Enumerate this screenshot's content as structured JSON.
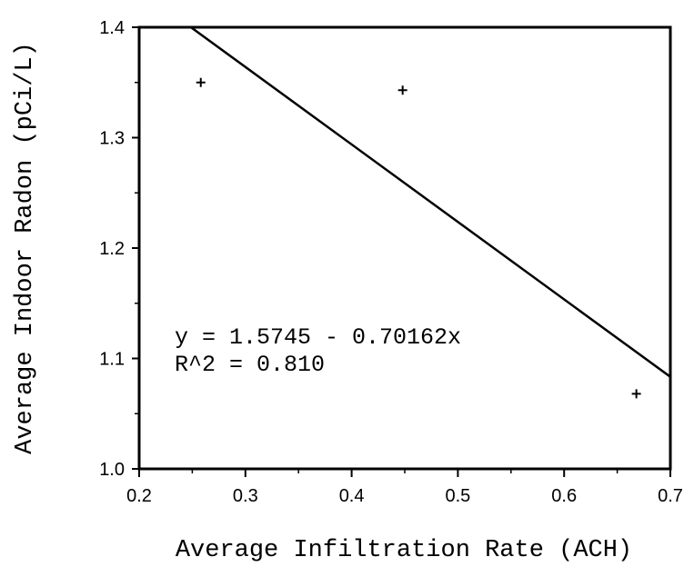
{
  "chart_data": {
    "type": "scatter",
    "xlabel": "Average Infiltration Rate (ACH)",
    "ylabel": "Average Indoor Radon (pCi/L)",
    "xlim": [
      0.2,
      0.7
    ],
    "ylim": [
      1.0,
      1.4
    ],
    "xticks": [
      "0.2",
      "0.3",
      "0.4",
      "0.5",
      "0.6",
      "0.7"
    ],
    "yticks": [
      "1.0",
      "1.1",
      "1.2",
      "1.3",
      "1.4"
    ],
    "x_minor_step": 0.05,
    "y_minor_step": 0.05,
    "grid": false,
    "series": [
      {
        "marker": "+",
        "points": [
          {
            "x": 0.258,
            "y": 1.35
          },
          {
            "x": 0.448,
            "y": 1.343
          },
          {
            "x": 0.668,
            "y": 1.068
          }
        ]
      }
    ],
    "fit_line": {
      "intercept": 1.5745,
      "slope": -0.70162
    },
    "annotations": [
      "y = 1.5745 - 0.70162x",
      "R^2 = 0.810"
    ],
    "annotation_anchor_data": {
      "x": 0.235,
      "y": 1.11
    }
  }
}
